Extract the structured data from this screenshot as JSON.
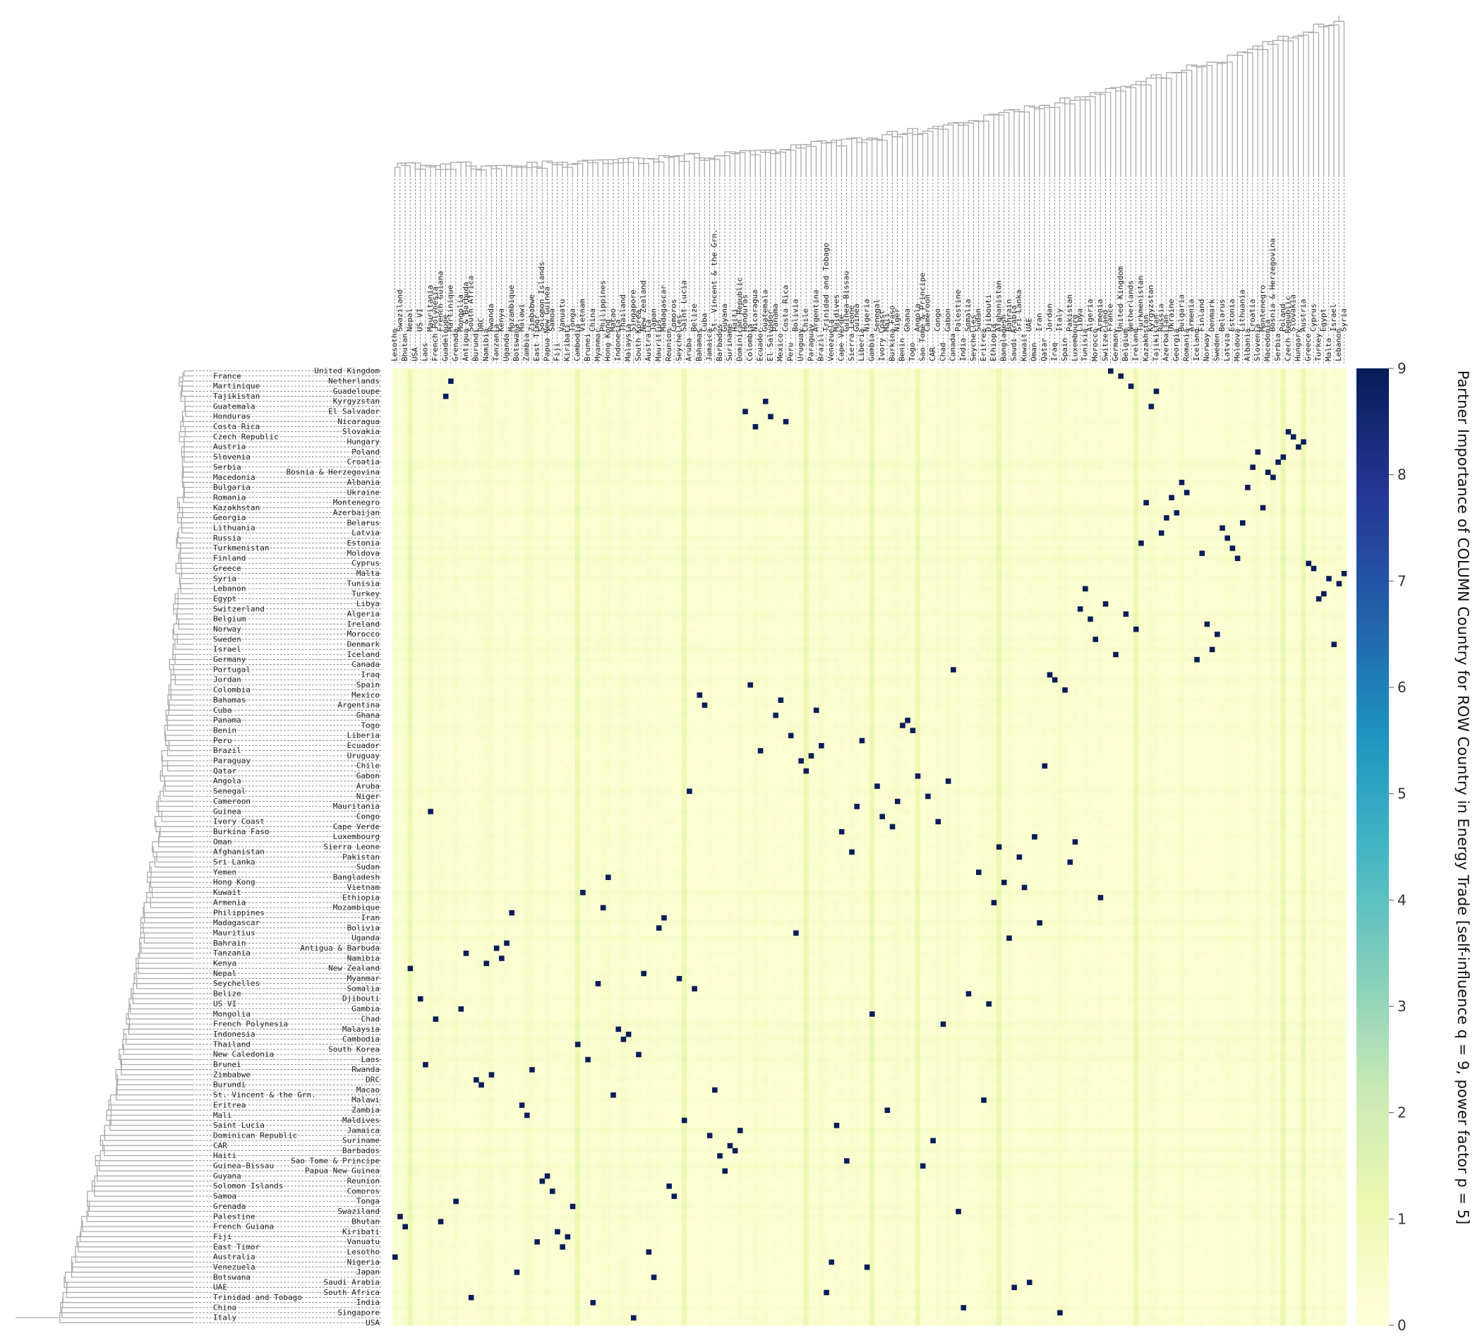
{
  "chart_data": {
    "type": "heatmap",
    "colorbar_label": "Partner Importance of COLUMN Country for ROW Country in Energy Trade [self-influence q = 9, power factor p = 5]",
    "colorbar": {
      "min": 0,
      "max": 9,
      "ticks": [
        0,
        1,
        2,
        3,
        4,
        5,
        6,
        7,
        8,
        9
      ],
      "colormap": "YlGnBu"
    },
    "rows": [
      "United Kingdom",
      "France",
      "Netherlands",
      "Martinique",
      "Guadeloupe",
      "Tajikistan",
      "Kyrgyzstan",
      "Guatemala",
      "El Salvador",
      "Honduras",
      "Nicaragua",
      "Costa Rica",
      "Slovakia",
      "Czech Republic",
      "Hungary",
      "Austria",
      "Poland",
      "Slovenia",
      "Croatia",
      "Serbia",
      "Bosnia & Herzegovina",
      "Macedonia",
      "Albania",
      "Bulgaria",
      "Ukraine",
      "Romania",
      "Montenegro",
      "Kazakhstan",
      "Azerbaijan",
      "Georgia",
      "Belarus",
      "Lithuania",
      "Latvia",
      "Russia",
      "Estonia",
      "Turkmenistan",
      "Moldova",
      "Finland",
      "Cyprus",
      "Greece",
      "Malta",
      "Syria",
      "Tunisia",
      "Lebanon",
      "Turkey",
      "Egypt",
      "Libya",
      "Switzerland",
      "Algeria",
      "Belgium",
      "Ireland",
      "Norway",
      "Morocco",
      "Sweden",
      "Denmark",
      "Israel",
      "Iceland",
      "Germany",
      "Canada",
      "Portugal",
      "Iraq",
      "Jordan",
      "Spain",
      "Colombia",
      "Mexico",
      "Bahamas",
      "Argentina",
      "Cuba",
      "Ghana",
      "Panama",
      "Togo",
      "Benin",
      "Liberia",
      "Peru",
      "Ecuador",
      "Brazil",
      "Uruguay",
      "Paraguay",
      "Chile",
      "Qatar",
      "Gabon",
      "Angola",
      "Aruba",
      "Senegal",
      "Niger",
      "Cameroon",
      "Mauritania",
      "Guinea",
      "Congo",
      "Ivory Coast",
      "Cape Verde",
      "Burkina Faso",
      "Luxembourg",
      "Oman",
      "Sierra Leone",
      "Afghanistan",
      "Pakistan",
      "Sri Lanka",
      "Sudan",
      "Yemen",
      "Bangladesh",
      "Hong Kong",
      "Vietnam",
      "Kuwait",
      "Ethiopia",
      "Armenia",
      "Mozambique",
      "Philippines",
      "Iran",
      "Madagascar",
      "Bolivia",
      "Mauritius",
      "Uganda",
      "Bahrain",
      "Antigua & Barbuda",
      "Tanzania",
      "Namibia",
      "Kenya",
      "New Zealand",
      "Nepal",
      "Myanmar",
      "Seychelles",
      "Somalia",
      "Belize",
      "Djibouti",
      "US VI",
      "Gambia",
      "Mongolia",
      "Chad",
      "French Polynesia",
      "Malaysia",
      "Indonesia",
      "Cambodia",
      "Thailand",
      "South Korea",
      "New Caledonia",
      "Laos",
      "Brunei",
      "Rwanda",
      "Zimbabwe",
      "DRC",
      "Burundi",
      "Macao",
      "St. Vincent & the Grn.",
      "Malawi",
      "Eritrea",
      "Zambia",
      "Mali",
      "Maldives",
      "Saint Lucia",
      "Jamaica",
      "Dominican Republic",
      "Suriname",
      "CAR",
      "Barbados",
      "Haiti",
      "Sao Tome & Principe",
      "Guinea-Bissau",
      "Papua New Guinea",
      "Guyana",
      "Reunion",
      "Solomon Islands",
      "Comoros",
      "Samoa",
      "Tonga",
      "Grenada",
      "Swaziland",
      "Palestine",
      "Bhutan",
      "French Guiana",
      "Kiribati",
      "Fiji",
      "Vanuatu",
      "East Timor",
      "Lesotho",
      "Australia",
      "Nigeria",
      "Venezuela",
      "Japan",
      "Botswana",
      "Saudi Arabia",
      "UAE",
      "South Africa",
      "Trinidad and Tobago",
      "India",
      "China",
      "Singapore",
      "Italy",
      "USA"
    ],
    "columns": [
      "Lesotho",
      "Swaziland",
      "Bhutan",
      "Nepal",
      "USA",
      "US VI",
      "Laos",
      "Mauritania",
      "French Polynesia",
      "French Guiana",
      "Guadeloupe",
      "Martinique",
      "Grenada",
      "Mongolia",
      "Antigua & Barbuda",
      "South Africa",
      "Burundi",
      "DRC",
      "Namibia",
      "Rwanda",
      "Tanzania",
      "Kenya",
      "Uganda",
      "Mozambique",
      "Botswana",
      "Malawi",
      "Zambia",
      "Zimbabwe",
      "East Timor",
      "Solomon Islands",
      "Papua New Guinea",
      "Samoa",
      "Fiji",
      "Vanuatu",
      "Kiribati",
      "Tonga",
      "Cambodia",
      "Vietnam",
      "Brunei",
      "China",
      "Myanmar",
      "Philippines",
      "Hong Kong",
      "Macao",
      "Indonesia",
      "Thailand",
      "Malaysia",
      "Singapore",
      "South Korea",
      "New Zealand",
      "Australia",
      "Japan",
      "Mauritius",
      "Madagascar",
      "Reunion",
      "Comoros",
      "Seychelles",
      "Saint Lucia",
      "Aruba",
      "Belize",
      "Bahamas",
      "Cuba",
      "Jamaica",
      "St. Vincent & the Grn.",
      "Barbados",
      "Guyana",
      "Suriname",
      "Haiti",
      "Dominican Republic",
      "Honduras",
      "Colombia",
      "Nicaragua",
      "Ecuador",
      "Guatemala",
      "El Salvador",
      "Panama",
      "Mexico",
      "Costa Rica",
      "Peru",
      "Bolivia",
      "Uruguay",
      "Chile",
      "Paraguay",
      "Argentina",
      "Brazil",
      "Trinidad and Tobago",
      "Venezuela",
      "Maldives",
      "Cape Verde",
      "Guinea-Bissau",
      "Sierra Leone",
      "Guinea",
      "Liberia",
      "Nigeria",
      "Gambia",
      "Senegal",
      "Ivory Coast",
      "Mali",
      "Burkina Faso",
      "Niger",
      "Benin",
      "Ghana",
      "Togo",
      "Angola",
      "Sao Tome & Principe",
      "Cameroon",
      "CAR",
      "Congo",
      "Chad",
      "Gabon",
      "Canada",
      "Palestine",
      "India",
      "Somalia",
      "Seychelles",
      "Sudan",
      "Eritrea",
      "Djibouti",
      "Ethiopia",
      "Afghanistan",
      "Bangladesh",
      "Bahrain",
      "Saudi Arabia",
      "Sri Lanka",
      "Kuwait",
      "UAE",
      "Oman",
      "Iran",
      "Qatar",
      "Jordan",
      "Iraq",
      "Italy",
      "Spain",
      "Pakistan",
      "Luxembourg",
      "Libya",
      "Tunisia",
      "Algeria",
      "Morocco",
      "Armenia",
      "Switzerland",
      "France",
      "Germany",
      "United Kingdom",
      "Belgium",
      "Netherlands",
      "Ireland",
      "Turkmenistan",
      "Kazakhstan",
      "Kyrgyzstan",
      "Tajikistan",
      "Russia",
      "Azerbaijan",
      "Ukraine",
      "Georgia",
      "Bulgaria",
      "Romania",
      "Armenia",
      "Iceland",
      "Finland",
      "Norway",
      "Denmark",
      "Sweden",
      "Belarus",
      "Latvia",
      "Estonia",
      "Moldova",
      "Lithuania",
      "Albania",
      "Croatia",
      "Slovenia",
      "Montenegro",
      "Macedonia",
      "Bosnia & Herzegovina",
      "Serbia",
      "Poland",
      "Czech Republic",
      "Slovakia",
      "Hungary",
      "Austria",
      "Greece",
      "Cyprus",
      "Turkey",
      "Egypt",
      "Malta",
      "Israel",
      "Lebanon",
      "Syria"
    ]
  }
}
